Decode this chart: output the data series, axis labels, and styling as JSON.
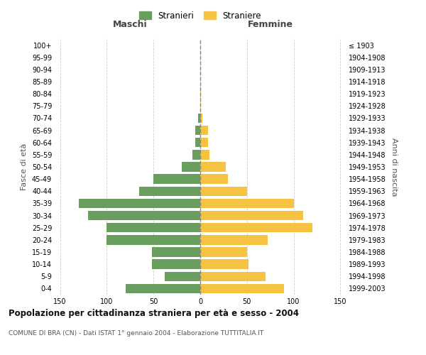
{
  "age_groups": [
    "0-4",
    "5-9",
    "10-14",
    "15-19",
    "20-24",
    "25-29",
    "30-34",
    "35-39",
    "40-44",
    "45-49",
    "50-54",
    "55-59",
    "60-64",
    "65-69",
    "70-74",
    "75-79",
    "80-84",
    "85-89",
    "90-94",
    "95-99",
    "100+"
  ],
  "birth_years": [
    "1999-2003",
    "1994-1998",
    "1989-1993",
    "1984-1988",
    "1979-1983",
    "1974-1978",
    "1969-1973",
    "1964-1968",
    "1959-1963",
    "1954-1958",
    "1949-1953",
    "1944-1948",
    "1939-1943",
    "1934-1938",
    "1929-1933",
    "1924-1928",
    "1919-1923",
    "1914-1918",
    "1909-1913",
    "1904-1908",
    "≤ 1903"
  ],
  "maschi": [
    80,
    38,
    52,
    52,
    100,
    100,
    120,
    130,
    65,
    50,
    20,
    8,
    5,
    5,
    2,
    0,
    0,
    0,
    0,
    0,
    0
  ],
  "femmine": [
    90,
    70,
    52,
    50,
    72,
    120,
    110,
    100,
    50,
    30,
    27,
    10,
    8,
    8,
    2,
    1,
    1,
    0,
    0,
    0,
    0
  ],
  "maschi_color": "#6a9e5e",
  "femmine_color": "#f5c242",
  "background_color": "#ffffff",
  "grid_color": "#cccccc",
  "title": "Popolazione per cittadinanza straniera per età e sesso - 2004",
  "subtitle": "COMUNE DI BRA (CN) - Dati ISTAT 1° gennaio 2004 - Elaborazione TUTTITALIA.IT",
  "xlabel_left": "Maschi",
  "xlabel_right": "Femmine",
  "ylabel_left": "Fasce di età",
  "ylabel_right": "Anni di nascita",
  "legend_stranieri": "Stranieri",
  "legend_straniere": "Straniere",
  "xlim": 155
}
